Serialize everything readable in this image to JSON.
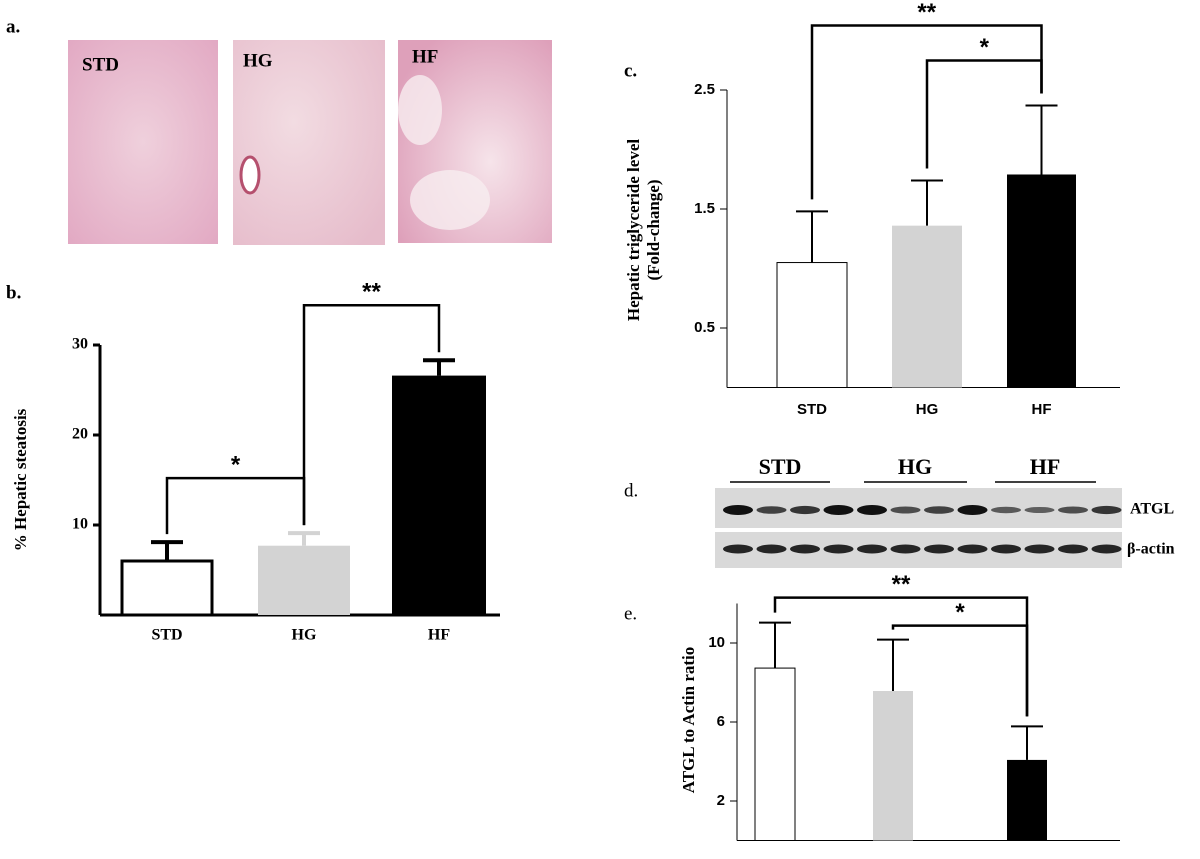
{
  "panel_labels": [
    "a.",
    "b.",
    "c.",
    "d.",
    "e."
  ],
  "histology": [
    "STD",
    "HG",
    "HF"
  ],
  "blot": {
    "groups": [
      "STD",
      "HG",
      "HF"
    ],
    "bands": [
      "ATGL",
      "β-actin"
    ]
  },
  "chart_data": [
    {
      "type": "bar",
      "y_label": [
        "% Hepatic steatosis"
      ],
      "categories": [
        "STD",
        "HG",
        "HF"
      ],
      "values": [
        6.0,
        7.7,
        26.6
      ],
      "errors": [
        2.1,
        1.4,
        1.7
      ],
      "colors": [
        "#ffffff",
        "#d3d3d3",
        "#000000"
      ],
      "error_colors": [
        "#000000",
        "#d3d3d3",
        "#000000"
      ],
      "ylim": [
        0,
        30
      ],
      "yticks": [
        10,
        20,
        30
      ],
      "annotations": [
        {
          "label": "*",
          "from": 0,
          "to": 1
        },
        {
          "label": "**",
          "from": 1,
          "to": 2
        }
      ]
    },
    {
      "type": "bar",
      "y_label": [
        "Hepatic triglyceride level",
        "(Fold-change)"
      ],
      "categories": [
        "STD",
        "HG",
        "HF"
      ],
      "values": [
        1.05,
        1.36,
        1.79
      ],
      "errors": [
        0.43,
        0.38,
        0.58
      ],
      "colors": [
        "#ffffff",
        "#d3d3d3",
        "#000000"
      ],
      "ylim": [
        0,
        2.5
      ],
      "yticks": [
        0.5,
        1.5,
        2.5
      ],
      "annotations": [
        {
          "label": "*",
          "from": 1,
          "to": 2
        },
        {
          "label": "**",
          "from": 0,
          "to": 2
        }
      ]
    },
    {
      "type": "bar",
      "y_label": [
        "ATGL to Actin ratio"
      ],
      "categories": [
        null,
        null,
        null
      ],
      "values": [
        8.73,
        7.57,
        4.08
      ],
      "errors": [
        2.3,
        2.6,
        1.7
      ],
      "colors": [
        "#ffffff",
        "#d3d3d3",
        "#000000"
      ],
      "ylim": [
        0,
        12
      ],
      "yticks": [
        2,
        6,
        10
      ],
      "annotations": [
        {
          "label": "*",
          "from": 1,
          "to": 2
        },
        {
          "label": "**",
          "from": 0,
          "to": 2
        }
      ]
    }
  ]
}
